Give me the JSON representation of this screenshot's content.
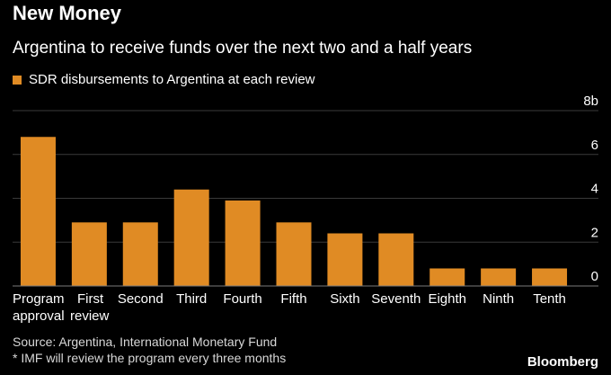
{
  "chart_data": {
    "type": "bar",
    "title": "New Money",
    "subtitle": "Argentina to receive funds over the next two and a half years",
    "legend": [
      {
        "label": "SDR disbursements to Argentina at each review",
        "color": "#e08b24"
      }
    ],
    "categories": [
      "Program approval",
      "First review",
      "Second",
      "Third",
      "Fourth",
      "Fifth",
      "Sixth",
      "Seventh",
      "Eighth",
      "Ninth",
      "Tenth"
    ],
    "category_labels": [
      [
        "Program",
        "approval"
      ],
      [
        "First",
        "review"
      ],
      [
        "Second"
      ],
      [
        "Third"
      ],
      [
        "Fourth"
      ],
      [
        "Fifth"
      ],
      [
        "Sixth"
      ],
      [
        "Seventh"
      ],
      [
        "Eighth"
      ],
      [
        "Ninth"
      ],
      [
        "Tenth"
      ]
    ],
    "values": [
      6.8,
      2.9,
      2.9,
      4.4,
      3.9,
      2.9,
      2.4,
      2.4,
      0.8,
      0.8,
      0.8
    ],
    "ylim": [
      0,
      8
    ],
    "yticks": [
      0,
      2,
      4,
      6,
      8
    ],
    "ytick_labels": [
      "0",
      "2",
      "4",
      "6",
      "8b"
    ],
    "ylabel": "",
    "xlabel": "",
    "grid": true,
    "bar_color": "#e08b24"
  },
  "footer": {
    "source": "Source: Argentina, International Monetary Fund",
    "note": "* IMF will review the program every three months",
    "brand": "Bloomberg"
  }
}
